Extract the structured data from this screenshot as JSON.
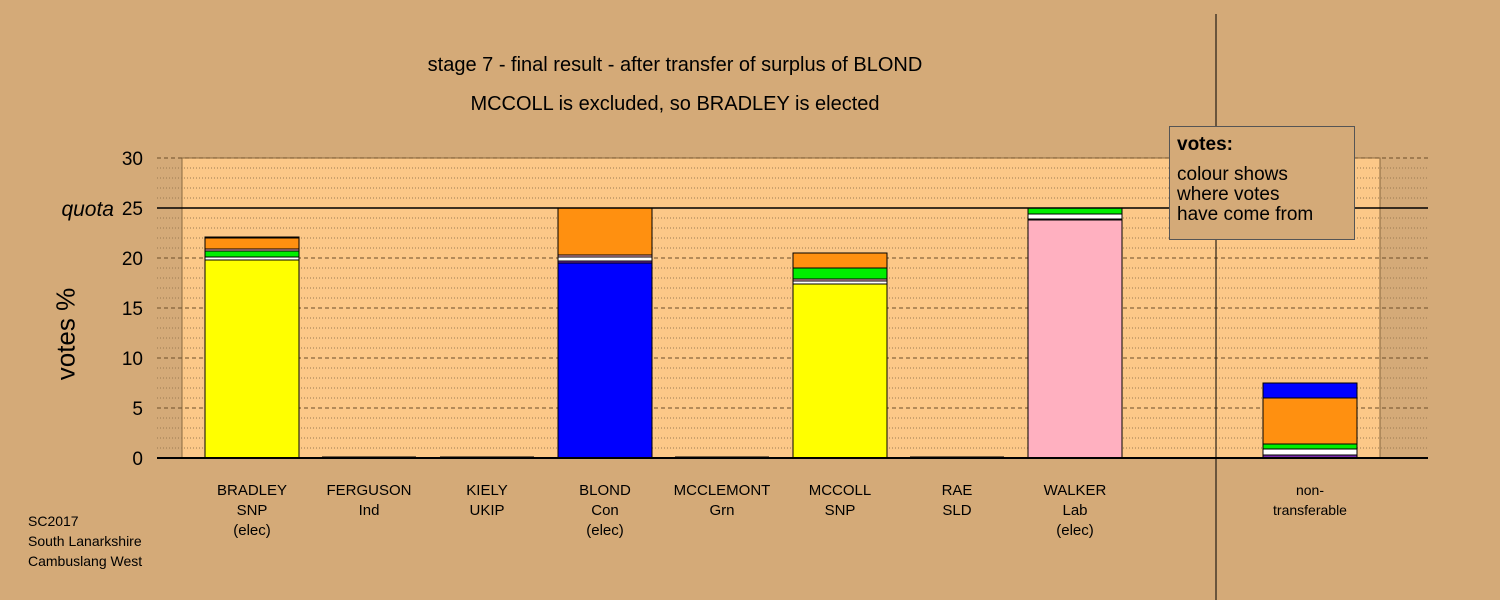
{
  "header": {
    "title": "stage 7 - final result - after transfer of surplus of BLOND",
    "subtitle": "MCCOLL is excluded, so BRADLEY is elected"
  },
  "legend": {
    "heading": "votes:",
    "lines": [
      "colour shows",
      "where votes",
      "have come from"
    ]
  },
  "footer": {
    "lines": [
      "SC2017",
      "South Lanarkshire",
      "Cambuslang West"
    ]
  },
  "colors": {
    "background": "#d4aa78",
    "plot_area": "#fcc888",
    "SNP": "#ffff00",
    "Con": "#0000ff",
    "Lab": "#ffb0c0",
    "Grn": "#00ee00",
    "Ind": "#ff9010",
    "UKIP": "#7b2bb0",
    "SLD": "#ffffff"
  },
  "chart_data": {
    "type": "bar",
    "stacked": true,
    "ylabel": "votes %",
    "ylim": [
      0,
      30
    ],
    "yticks": [
      0,
      5,
      10,
      15,
      20,
      25,
      30
    ],
    "quota": {
      "label": "quota",
      "value": 25
    },
    "grid": true,
    "categories": [
      {
        "name": "BRADLEY",
        "party": "SNP",
        "note": "(elec)"
      },
      {
        "name": "FERGUSON",
        "party": "Ind",
        "note": ""
      },
      {
        "name": "KIELY",
        "party": "UKIP",
        "note": ""
      },
      {
        "name": "BLOND",
        "party": "Con",
        "note": "(elec)"
      },
      {
        "name": "MCCLEMONT",
        "party": "Grn",
        "note": ""
      },
      {
        "name": "MCCOLL",
        "party": "SNP",
        "note": ""
      },
      {
        "name": "RAE",
        "party": "SLD",
        "note": ""
      },
      {
        "name": "WALKER",
        "party": "Lab",
        "note": "(elec)"
      },
      {
        "name": "non-",
        "party": "transferable",
        "note": ""
      }
    ],
    "bars": [
      {
        "segments": [
          {
            "source": "SNP",
            "value": 19.8
          },
          {
            "source": "SLD",
            "value": 0.3
          },
          {
            "source": "Grn",
            "value": 0.6
          },
          {
            "source": "Lab",
            "value": 0.2
          },
          {
            "source": "Ind",
            "value": 1.1
          },
          {
            "source": "UKIP",
            "value": 0.1
          }
        ]
      },
      {
        "segments": []
      },
      {
        "segments": []
      },
      {
        "segments": [
          {
            "source": "Con",
            "value": 19.5
          },
          {
            "source": "UKIP",
            "value": 0.2
          },
          {
            "source": "SLD",
            "value": 0.4
          },
          {
            "source": "Lab",
            "value": 0.2
          },
          {
            "source": "Ind",
            "value": 4.7
          }
        ]
      },
      {
        "segments": []
      },
      {
        "segments": [
          {
            "source": "SNP",
            "value": 17.4
          },
          {
            "source": "SLD",
            "value": 0.3
          },
          {
            "source": "Lab",
            "value": 0.2
          },
          {
            "source": "Grn",
            "value": 1.1
          },
          {
            "source": "Ind",
            "value": 1.5
          }
        ]
      },
      {
        "segments": []
      },
      {
        "segments": [
          {
            "source": "Lab",
            "value": 23.8
          },
          {
            "source": "UKIP",
            "value": 0.1
          },
          {
            "source": "SLD",
            "value": 0.5
          },
          {
            "source": "Grn",
            "value": 0.6
          }
        ]
      },
      {
        "segments": [
          {
            "source": "UKIP",
            "value": 0.3
          },
          {
            "source": "SLD",
            "value": 0.6
          },
          {
            "source": "Grn",
            "value": 0.5
          },
          {
            "source": "Ind",
            "value": 4.6
          },
          {
            "source": "Con",
            "value": 1.5
          }
        ]
      }
    ]
  }
}
